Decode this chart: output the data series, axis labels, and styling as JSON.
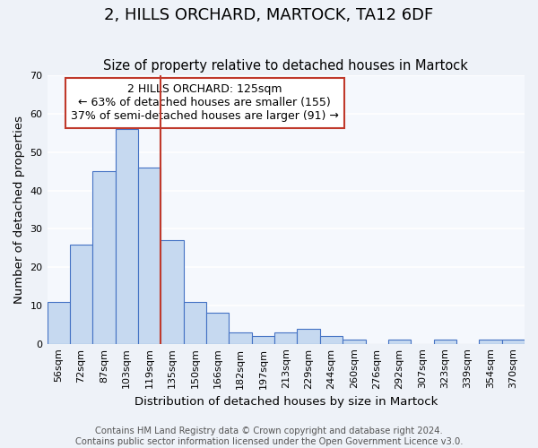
{
  "title": "2, HILLS ORCHARD, MARTOCK, TA12 6DF",
  "subtitle": "Size of property relative to detached houses in Martock",
  "xlabel": "Distribution of detached houses by size in Martock",
  "ylabel": "Number of detached properties",
  "bar_labels": [
    "56sqm",
    "72sqm",
    "87sqm",
    "103sqm",
    "119sqm",
    "135sqm",
    "150sqm",
    "166sqm",
    "182sqm",
    "197sqm",
    "213sqm",
    "229sqm",
    "244sqm",
    "260sqm",
    "276sqm",
    "292sqm",
    "307sqm",
    "323sqm",
    "339sqm",
    "354sqm",
    "370sqm"
  ],
  "bar_values": [
    11,
    26,
    45,
    56,
    46,
    27,
    11,
    8,
    3,
    2,
    3,
    4,
    2,
    1,
    0,
    1,
    0,
    1,
    0,
    1,
    1
  ],
  "bar_color": "#c6d9f0",
  "bar_edge_color": "#4472c4",
  "ylim": [
    0,
    70
  ],
  "yticks": [
    0,
    10,
    20,
    30,
    40,
    50,
    60,
    70
  ],
  "vline_x": 4.5,
  "vline_color": "#c0392b",
  "annotation_text": "2 HILLS ORCHARD: 125sqm\n← 63% of detached houses are smaller (155)\n37% of semi-detached houses are larger (91) →",
  "annotation_box_color": "#ffffff",
  "annotation_box_edge_color": "#c0392b",
  "footer_text": "Contains HM Land Registry data © Crown copyright and database right 2024.\nContains public sector information licensed under the Open Government Licence v3.0.",
  "background_color": "#eef2f8",
  "plot_background_color": "#f5f8fd",
  "grid_color": "#ffffff",
  "title_fontsize": 13,
  "subtitle_fontsize": 10.5,
  "axis_label_fontsize": 9.5,
  "tick_fontsize": 8,
  "annotation_fontsize": 9,
  "footer_fontsize": 7.2
}
